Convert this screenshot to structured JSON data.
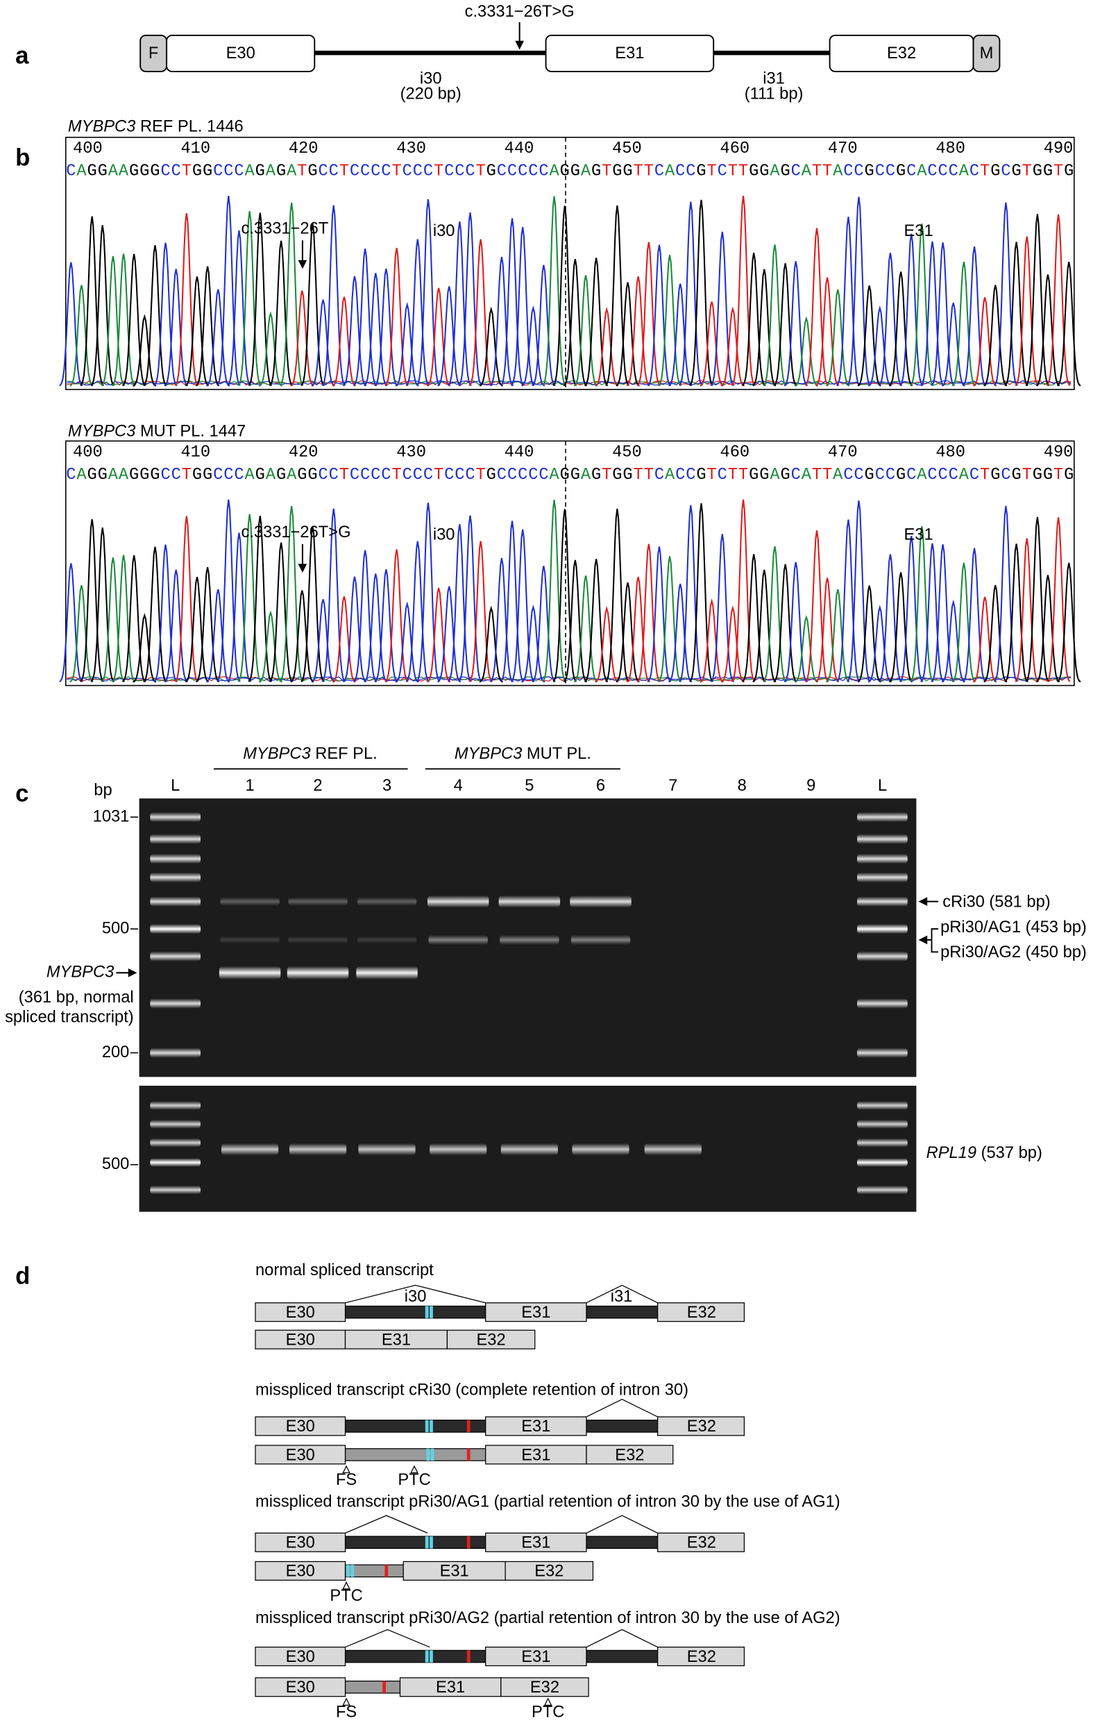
{
  "panel_labels": [
    "a",
    "b",
    "c",
    "d"
  ],
  "gene_map": {
    "variant": "c.3331−26T>G",
    "blocks": [
      "F",
      "E30",
      "E31",
      "E32",
      "M"
    ],
    "introns": [
      {
        "name": "i30",
        "size": "(220 bp)"
      },
      {
        "name": "i31",
        "size": "(111 bp)"
      }
    ]
  },
  "chromatograms": [
    {
      "gene": "MYBPC3",
      "title": "REF PL. 1446",
      "positions": [
        400,
        410,
        420,
        430,
        440,
        450,
        460,
        470,
        480,
        490
      ],
      "sequence": "CAGGAAGGGCCTGGCCCAGAGATGCCTCCCCTCCCTCCCTGCCCCCAGGAGTGGTTCACCGTCTTGGAGCATTACCGCCGCACCCACTGCGTGGTG",
      "marker": "c.3331−26T",
      "regions": [
        "i30",
        "E31"
      ]
    },
    {
      "gene": "MYBPC3",
      "title": "MUT PL. 1447",
      "positions": [
        400,
        410,
        420,
        430,
        440,
        450,
        460,
        470,
        480,
        490
      ],
      "sequence": "CAGGAAGGGCCTGGCCCAGAGAGGCCTCCCCTCCCTCCCTGCCCCCAGGAGTGGTTCACCGTCTTGGAGCATTACCGCCGCACCCACTGCGTGGTG",
      "marker": "c.3331−26T>G",
      "regions": [
        "i30",
        "E31"
      ]
    }
  ],
  "gel": {
    "groups": [
      {
        "gene": "MYBPC3",
        "label": "REF PL."
      },
      {
        "gene": "MYBPC3",
        "label": "MUT PL."
      }
    ],
    "bp_label": "bp",
    "lanes": [
      "L",
      "1",
      "2",
      "3",
      "4",
      "5",
      "6",
      "7",
      "8",
      "9",
      "L"
    ],
    "ladder_labels": [
      "1031",
      "500",
      "200"
    ],
    "left_label": {
      "gene": "MYBPC3",
      "lines": [
        "(361 bp, normal",
        "spliced transcript)"
      ]
    },
    "right_labels": [
      "cRi30 (581 bp)",
      "pRi30/AG1 (453 bp)",
      "pRi30/AG2 (450 bp)"
    ],
    "control": {
      "gene": "RPL19",
      "size": "(537 bp)",
      "ladder_label": "500"
    }
  },
  "transcripts": [
    {
      "title": "normal spliced transcript",
      "top": [
        "E30",
        "i30",
        "E31",
        "i31",
        "E32"
      ],
      "bottom": [
        "E30",
        "E31",
        "E32"
      ],
      "notes": []
    },
    {
      "title": "misspliced transcript cRi30 (complete retention of intron 30)",
      "top": [
        "E30",
        "E31",
        "E32"
      ],
      "bottom": [
        "E30",
        "E31",
        "E32"
      ],
      "notes": [
        "FS",
        "PTC"
      ]
    },
    {
      "title": "misspliced transcript pRi30/AG1 (partial retention of intron 30 by the use of AG1)",
      "top": [
        "E30",
        "E31",
        "E32"
      ],
      "bottom": [
        "E30",
        "E31",
        "E32"
      ],
      "notes": [
        "PTC"
      ]
    },
    {
      "title": "misspliced transcript pRi30/AG2 (partial retention of intron 30 by the use of AG2)",
      "top": [
        "E30",
        "E31",
        "E32"
      ],
      "bottom": [
        "E30",
        "E31",
        "E32"
      ],
      "notes": [
        "FS",
        "PTC"
      ]
    }
  ]
}
